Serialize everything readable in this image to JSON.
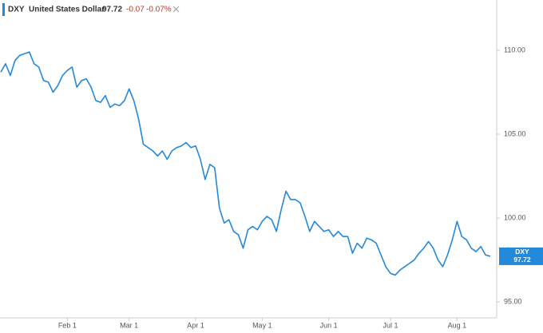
{
  "chart_data": {
    "type": "line",
    "legend": {
      "symbol": "DXY",
      "name": "United States Dollar",
      "last": "97.72",
      "change": "-0.07",
      "change_percent": "-0.07%"
    },
    "categories": [
      null,
      null,
      null,
      null,
      null,
      null,
      null,
      null,
      null,
      null,
      null,
      null,
      null,
      null,
      "Feb 1",
      null,
      null,
      null,
      null,
      null,
      null,
      null,
      null,
      null,
      null,
      null,
      null,
      "Mar 1",
      null,
      null,
      null,
      null,
      null,
      null,
      null,
      null,
      null,
      null,
      null,
      null,
      null,
      "Apr 1",
      null,
      null,
      null,
      null,
      null,
      null,
      null,
      null,
      null,
      null,
      null,
      null,
      null,
      "May 1",
      null,
      null,
      null,
      null,
      null,
      null,
      null,
      null,
      null,
      null,
      null,
      null,
      null,
      "Jun 1",
      null,
      null,
      null,
      null,
      null,
      null,
      null,
      null,
      null,
      null,
      null,
      null,
      "Jul 1",
      null,
      null,
      null,
      null,
      null,
      null,
      null,
      null,
      null,
      null,
      null,
      null,
      null,
      "Aug 1",
      null,
      null,
      null,
      null,
      null,
      null,
      null
    ],
    "series": [
      {
        "name": "DXY",
        "color": "#2389da",
        "values": [
          108.7,
          109.2,
          108.5,
          109.4,
          109.7,
          109.8,
          109.9,
          109.2,
          109.0,
          108.2,
          108.1,
          107.5,
          107.9,
          108.5,
          108.8,
          109.0,
          107.8,
          108.2,
          108.3,
          107.8,
          107.0,
          106.9,
          107.3,
          106.6,
          106.8,
          106.7,
          107.0,
          107.7,
          107.0,
          105.9,
          104.4,
          104.2,
          104.0,
          103.7,
          104.0,
          103.5,
          104.0,
          104.2,
          104.3,
          104.5,
          104.2,
          104.3,
          103.5,
          102.3,
          103.2,
          103.0,
          100.6,
          99.7,
          99.9,
          99.2,
          99.0,
          98.2,
          99.3,
          99.5,
          99.3,
          99.8,
          100.1,
          99.9,
          99.2,
          100.5,
          101.6,
          101.1,
          101.1,
          100.9,
          100.1,
          99.2,
          99.8,
          99.5,
          99.2,
          99.3,
          98.9,
          99.2,
          98.9,
          98.9,
          97.9,
          98.5,
          98.2,
          98.8,
          98.7,
          98.5,
          97.8,
          97.1,
          96.7,
          96.6,
          96.9,
          97.1,
          97.3,
          97.5,
          97.9,
          98.2,
          98.6,
          98.2,
          97.5,
          97.1,
          97.8,
          98.7,
          99.8,
          98.9,
          98.7,
          98.2,
          98.0,
          98.3,
          97.8,
          97.72
        ]
      }
    ],
    "ylim": [
      94.05,
      113
    ],
    "yticks": [
      {
        "value": 95,
        "label": "95.00"
      },
      {
        "value": 100,
        "label": "100.00"
      },
      {
        "value": 105,
        "label": "105.00"
      },
      {
        "value": 110,
        "label": "110.00"
      }
    ],
    "y_axis_side": "right",
    "grid": false
  }
}
